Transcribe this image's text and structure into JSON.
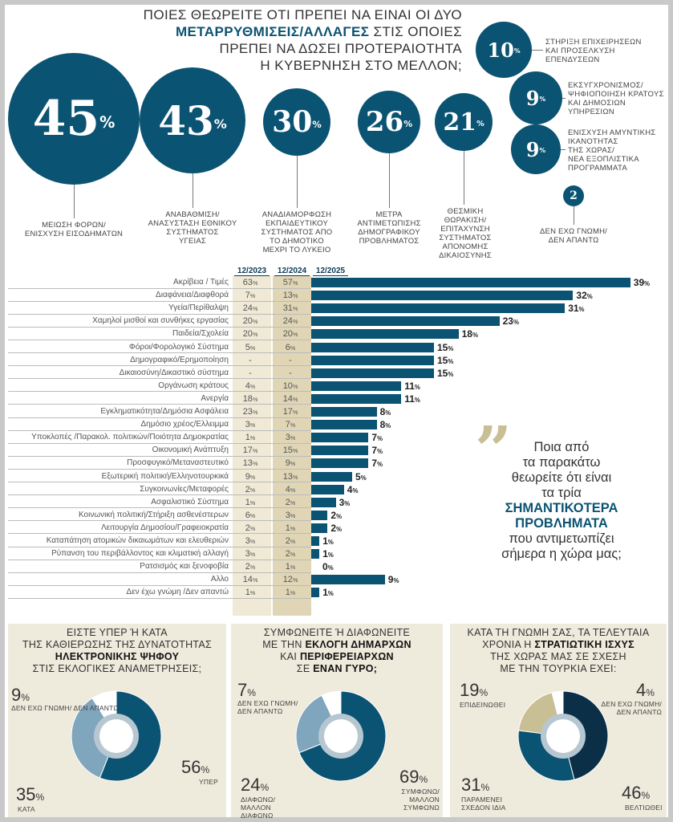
{
  "title": {
    "line1": "ΠΟΙΕΣ ΘΕΩΡΕΙΤΕ ΟΤΙ ΠΡΕΠΕΙ ΝΑ ΕΙΝΑΙ ΟΙ ΔΥΟ",
    "line2_bold": "ΜΕΤΑΡΡΥΘΜΙΣΕΙΣ/ΑΛΛΑΓΕΣ",
    "line2_rest": " ΣΤΙΣ ΟΠΟΙΕΣ",
    "line3": "ΠΡΕΠΕΙ ΝΑ ΔΩΣΕΙ ΠΡΟΤΕΡΑΙΟΤΗΤΑ",
    "line4": "Η ΚΥΒΕΡΝΗΣΗ ΣΤΟ ΜΕΛΛΟΝ;"
  },
  "reforms": [
    {
      "value": "45",
      "label": "ΜΕΙΩΣΗ ΦΟΡΩΝ/\nΕΝΙΣΧΥΣΗ ΕΙΣΟΔΗΜΑΤΩΝ"
    },
    {
      "value": "43",
      "label": "ΑΝΑΒΑΘΜΙΣΗ/\nΑΝΑΣΥΣΤΑΣΗ ΕΘΝΙΚΟΥ\nΣΥΣΤΗΜΑΤΟΣ\nΥΓΕΙΑΣ"
    },
    {
      "value": "30",
      "label": "ΑΝΑΔΙΑΜΟΡΦΩΣΗ\nΕΚΠΑΙΔΕΥΤΙΚΟΥ\nΣΥΣΤΗΜΑΤΟΣ ΑΠΟ\nΤΟ ΔΗΜΟΤΙΚΟ\nΜΕΧΡΙ ΤΟ ΛΥΚΕΙΟ"
    },
    {
      "value": "26",
      "label": "ΜΕΤΡΑ\nΑΝΤΙΜΕΤΩΠΙΣΗΣ\nΔΗΜΟΓΡΑΦΙΚΟΥ\nΠΡΟΒΛΗΜΑΤΟΣ"
    },
    {
      "value": "21",
      "label": "ΘΕΣΜΙΚΗ\nΘΩΡΑΚΙΣΗ/\nΕΠΙΤΑΧΥΝΣΗ\nΣΥΣΤΗΜΑΤΟΣ\nΑΠΟΝΟΜΗΣ\nΔΙΚΑΙΟΣΥΝΗΣ"
    },
    {
      "value": "10",
      "label": "ΣΤΗΡΙΞΗ ΕΠΙΧΕΙΡΗΣΕΩΝ\nΚΑΙ ΠΡΟΣΕΛΚΥΣΗ\nΕΠΕΝΔΥΣΕΩΝ"
    },
    {
      "value": "9",
      "label": "ΕΚΣΥΓΧΡΟΝΙΣΜΟΣ/\nΨΗΦΙΟΠΟΙΗΣΗ ΚΡΑΤΟΥΣ\nΚΑΙ ΔΗΜΟΣΙΩΝ\nΥΠΗΡΕΣΙΩΝ"
    },
    {
      "value": "9",
      "label": "ΕΝΙΣΧΥΣΗ ΑΜΥΝΤΙΚΗΣ\nΙΚΑΝΟΤΗΤΑΣ\nΤΗΣ ΧΩΡΑΣ/\nΝΕΑ ΕΞΟΠΛΙΣΤΙΚΑ\nΠΡΟΓΡΑΜΜΑΤΑ"
    },
    {
      "value": "2",
      "label": "ΔΕΝ ΕΧΩ ΓΝΩΜΗ/\nΔΕΝ ΑΠΑΝΤΩ"
    }
  ],
  "pct_sign": "%",
  "quote": {
    "l1": "Ποια από",
    "l2": "τα παρακάτω",
    "l3": "θεωρείτε ότι είναι",
    "l4": "τα τρία",
    "l5": "ΣΗΜΑΝΤΙΚΟΤΕΡΑ",
    "l6": "ΠΡΟΒΛΗΜΑΤΑ",
    "l7": "που αντιμετωπίζει",
    "l8": "σήμερα η χώρα μας;"
  },
  "colors": {
    "teal": "#0b5372",
    "light_blue": "#7fa6bd",
    "navy": "#0c2f48",
    "beige": "#c8bf95",
    "panel_bg": "#eeeadc"
  },
  "chart_data": [
    {
      "type": "bar",
      "columns": [
        "12/2023",
        "12/2024",
        "12/2025"
      ],
      "categories": [
        "Ακρίβεια / Τιμές",
        "Διαφάνεια/Διαφθορά",
        "Υγεία/Περίθαλψη",
        "Χαμηλοί μισθοί και συνθήκες εργασίας",
        "Παιδεία/Σχολεία",
        "Φόροι/Φορολογικό Σύστημα",
        "Δημογραφικό/Ερημοποίηση",
        "Δικαιοσύνη/Δικαστικό σύστημα",
        "Οργάνωση κράτους",
        "Ανεργία",
        "Εγκληματικότητα/Δημόσια Ασφάλεια",
        "Δημόσιο χρέος/Ελλειμμα",
        "Υποκλοπές /Παρακολ. πολιτικών/Ποιότητα Δημοκρατίας",
        "Οικονομική Ανάπτυξη",
        "Προσφυγικό/Μεταναστευτικό",
        "Εξωτερική πολιτική/Ελληνοτουρκικά",
        "Συγκοινωνίες/Μεταφορές",
        "Ασφαλιστικό Σύστημα",
        "Κοινωνική πολιτική/Στήριξη ασθενέστερων",
        "Λειτουργία Δημοσίου/Γραφειοκρατία",
        "Καταπάτηση ατομικών δικαιωμάτων και ελευθεριών",
        "Ρύπανση του περιβάλλοντος και κλιματική αλλαγή",
        "Ρατσισμός και ξενοφοβία",
        "Αλλο",
        "Δεν έχω γνώμη /Δεν απαντώ"
      ],
      "v2023": [
        "63",
        "7",
        "24",
        "20",
        "20",
        "5",
        "-",
        "-",
        "4",
        "18",
        "23",
        "3",
        "1",
        "17",
        "13",
        "9",
        "2",
        "1",
        "6",
        "2",
        "3",
        "3",
        "2",
        "14",
        "1"
      ],
      "v2024": [
        "57",
        "13",
        "31",
        "24",
        "20",
        "6",
        "-",
        "-",
        "10",
        "14",
        "17",
        "7",
        "3",
        "15",
        "9",
        "13",
        "4",
        "2",
        "3",
        "1",
        "2",
        "2",
        "1",
        "12",
        "1"
      ],
      "v2025": [
        39,
        32,
        31,
        23,
        18,
        15,
        15,
        15,
        11,
        11,
        8,
        8,
        7,
        7,
        7,
        5,
        4,
        3,
        2,
        2,
        1,
        1,
        0,
        9,
        1
      ]
    },
    {
      "type": "pie",
      "title_parts": [
        "ΕΙΣΤΕ ΥΠΕΡ Ή ΚΑΤΑ",
        "ΤΗΣ ΚΑΘΙΕΡΩΣΗΣ ΤΗΣ ΔΥΝΑΤΟΤΗΤΑΣ",
        "ΗΛΕΚΤΡΟΝΙΚΗΣ ΨΗΦΟΥ",
        "ΣΤΙΣ ΕΚΛΟΓΙΚΕΣ ΑΝΑΜΕΤΡΗΣΕΙΣ;"
      ],
      "slices": [
        {
          "label": "ΥΠΕΡ",
          "value": 56,
          "color": "#0b5372"
        },
        {
          "label": "ΚΑΤΑ",
          "value": 35,
          "color": "#7fa6bd"
        },
        {
          "label": "ΔΕΝ ΕΧΩ ΓΝΩΜΗ/ ΔΕΝ ΑΠΑΝΤΩ",
          "value": 9,
          "color": "#ffffff"
        }
      ]
    },
    {
      "type": "pie",
      "title_parts": [
        "ΣΥΜΦΩΝΕΙΤΕ Ή ΔΙΑΦΩΝΕΙΤΕ",
        "ΜΕ ΤΗΝ ",
        "ΕΚΛΟΓΗ ΔΗΜΑΡΧΩΝ",
        "ΚΑΙ ",
        "ΠΕΡΙΦΕΡΕΙΑΡΧΩΝ",
        "ΣΕ ",
        "ΕΝΑΝ ΓΥΡΟ;"
      ],
      "slices": [
        {
          "label": "ΣΥΜΦΩΝΩ/ ΜΑΛΛΟΝ ΣΥΜΦΩΝΩ",
          "value": 69,
          "color": "#0b5372"
        },
        {
          "label": "ΔΙΑΦΩΝΩ/ ΜΑΛΛΟΝ ΔΙΑΦΩΝΩ",
          "value": 24,
          "color": "#7fa6bd"
        },
        {
          "label": "ΔΕΝ ΕΧΩ ΓΝΩΜΗ/ ΔΕΝ ΑΠΑΝΤΩ",
          "value": 7,
          "color": "#ffffff"
        }
      ]
    },
    {
      "type": "pie",
      "title_parts": [
        "ΚΑΤΑ ΤΗ ΓΝΩΜΗ ΣΑΣ, ΤΑ ΤΕΛΕΥΤΑΙΑ",
        "ΧΡΟΝΙΑ Η ",
        "ΣΤΡΑΤΙΩΤΙΚΗ ΙΣΧΥΣ",
        "ΤΗΣ ΧΩΡΑΣ ΜΑΣ ΣΕ ΣΧΕΣΗ",
        "ΜΕ ΤΗΝ ΤΟΥΡΚΙΑ ΕΧΕΙ:"
      ],
      "slices": [
        {
          "label": "ΒΕΛΤΙΩΘΕΙ",
          "value": 46,
          "color": "#0c2f48"
        },
        {
          "label": "ΠΑΡΑΜΕΝΕΙ ΣΧΕΔΟΝ ΙΔΙΑ",
          "value": 31,
          "color": "#0b5372"
        },
        {
          "label": "ΕΠΙΔΕΙΝΩΘΕΙ",
          "value": 19,
          "color": "#c8bf95"
        },
        {
          "label": "ΔΕΝ ΕΧΩ ΓΝΩΜΗ/ ΔΕΝ ΑΠΑΝΤΩ",
          "value": 4,
          "color": "#ffffff"
        }
      ]
    }
  ]
}
